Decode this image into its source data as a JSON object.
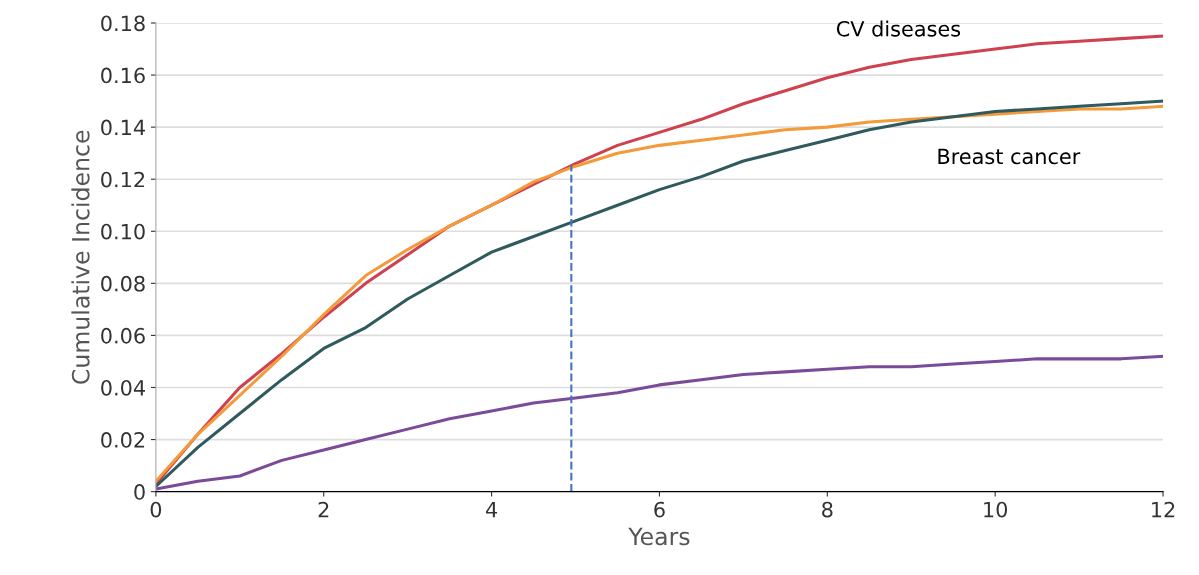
{
  "chart_data": {
    "type": "line",
    "xlabel": "Years",
    "ylabel": "Cumulative Incidence",
    "xlim": [
      0,
      12
    ],
    "xticks": [
      0,
      2,
      4,
      6,
      8,
      10,
      12
    ],
    "ylim": [
      0,
      0.18
    ],
    "yticks": [
      {
        "value": 0,
        "label": "0"
      },
      {
        "value": 0.02,
        "label": "0.02"
      },
      {
        "value": 0.04,
        "label": "0.04"
      },
      {
        "value": 0.06,
        "label": "0.06"
      },
      {
        "value": 0.08,
        "label": "0.08"
      },
      {
        "value": 0.1,
        "label": "0.10"
      },
      {
        "value": 0.12,
        "label": "0.12"
      },
      {
        "value": 0.14,
        "label": "0.14"
      },
      {
        "value": 0.16,
        "label": "0.16"
      },
      {
        "value": 0.18,
        "label": "0.18"
      }
    ],
    "grid": "y",
    "legend": false,
    "marker": "none",
    "line_style": "solid",
    "x": [
      0,
      0.5,
      1,
      1.5,
      2,
      2.5,
      3,
      3.5,
      4,
      4.5,
      5,
      5.5,
      6,
      6.5,
      7,
      7.5,
      8,
      8.5,
      9,
      9.5,
      10,
      10.5,
      11,
      11.5,
      12
    ],
    "series": [
      {
        "color": "#d0414f",
        "values": [
          0.003,
          0.022,
          0.04,
          0.053,
          0.067,
          0.08,
          0.091,
          0.102,
          0.11,
          0.118,
          0.126,
          0.133,
          0.138,
          0.143,
          0.149,
          0.154,
          0.159,
          0.163,
          0.166,
          0.168,
          0.17,
          0.172,
          0.173,
          0.174,
          0.175
        ]
      },
      {
        "color": "#f39a3b",
        "values": [
          0.004,
          0.022,
          0.037,
          0.052,
          0.068,
          0.083,
          0.093,
          0.102,
          0.11,
          0.119,
          0.125,
          0.13,
          0.133,
          0.135,
          0.137,
          0.139,
          0.14,
          0.142,
          0.143,
          0.144,
          0.145,
          0.146,
          0.147,
          0.147,
          0.148
        ]
      },
      {
        "color": "#2f5a5e",
        "values": [
          0.002,
          0.017,
          0.03,
          0.043,
          0.055,
          0.063,
          0.074,
          0.083,
          0.092,
          0.098,
          0.104,
          0.11,
          0.116,
          0.121,
          0.127,
          0.131,
          0.135,
          0.139,
          0.142,
          0.144,
          0.146,
          0.147,
          0.148,
          0.149,
          0.15
        ]
      },
      {
        "color": "#7b4b9a",
        "values": [
          0.001,
          0.004,
          0.006,
          0.012,
          0.016,
          0.02,
          0.024,
          0.028,
          0.031,
          0.034,
          0.036,
          0.038,
          0.041,
          0.043,
          0.045,
          0.046,
          0.047,
          0.048,
          0.048,
          0.049,
          0.05,
          0.051,
          0.051,
          0.051,
          0.052
        ]
      }
    ],
    "ref_lines": [
      {
        "axis": "x",
        "value": 4.95,
        "color": "#4472c4",
        "line_style": "dashed"
      }
    ],
    "annotations": [
      {
        "text": "CV diseases",
        "x": 8.1,
        "y": 0.16
      },
      {
        "text": "Breast cancer",
        "x": 9.3,
        "y": 0.143
      }
    ]
  }
}
